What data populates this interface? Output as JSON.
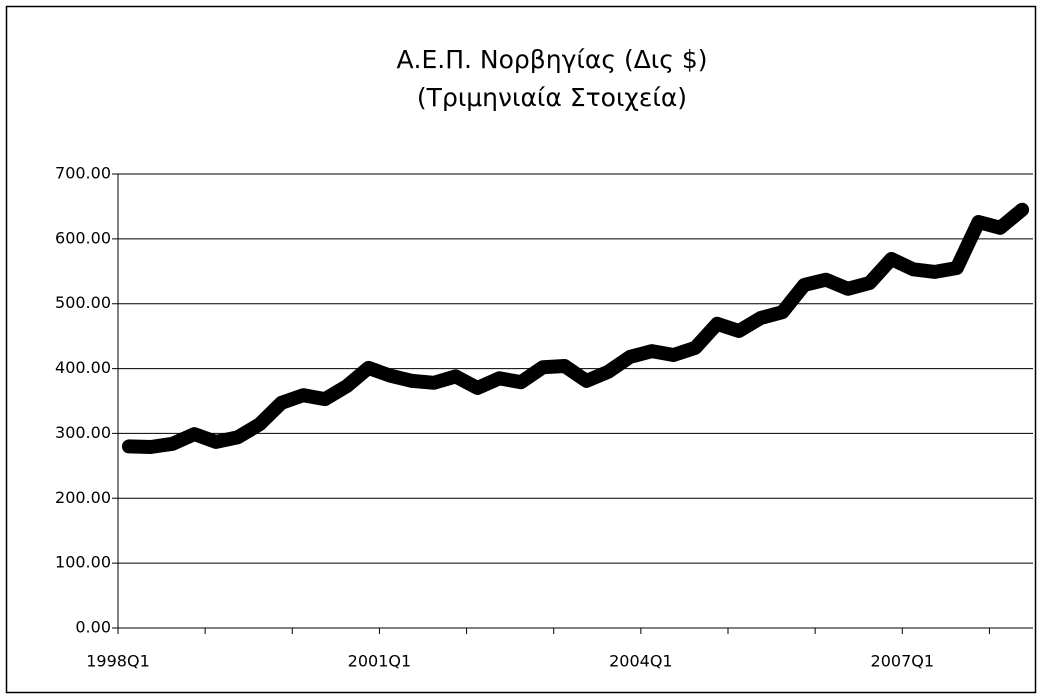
{
  "chart_data": {
    "type": "line",
    "title": "Α.Ε.Π.  Νορβηγίας (Δις $)",
    "subtitle": "(Τριμηνιαία Στοιχεία)",
    "categories": [
      "1998Q1",
      null,
      null,
      null,
      null,
      null,
      null,
      null,
      null,
      null,
      null,
      null,
      "2001Q1",
      null,
      null,
      null,
      null,
      null,
      null,
      null,
      null,
      null,
      null,
      null,
      "2004Q1",
      null,
      null,
      null,
      null,
      null,
      null,
      null,
      null,
      null,
      null,
      null,
      "2007Q1",
      null,
      null,
      null,
      null,
      null
    ],
    "series": [
      {
        "name": "Α.Ε.Π.",
        "color": "#000000",
        "values": [
          280,
          279,
          284,
          299,
          287,
          294,
          314,
          347,
          359,
          353,
          373,
          401,
          389,
          381,
          378,
          388,
          370,
          385,
          379,
          402,
          404,
          381,
          395,
          418,
          427,
          421,
          432,
          469,
          458,
          478,
          487,
          529,
          537,
          523,
          532,
          569,
          553,
          549,
          555,
          626,
          617,
          645
        ]
      }
    ],
    "ylim": [
      0,
      700
    ],
    "yticks": [
      {
        "value": 0,
        "label": "0.00"
      },
      {
        "value": 100,
        "label": "100.00"
      },
      {
        "value": 200,
        "label": "200.00"
      },
      {
        "value": 300,
        "label": "300.00"
      },
      {
        "value": 400,
        "label": "400.00"
      },
      {
        "value": 500,
        "label": "500.00"
      },
      {
        "value": 600,
        "label": "600.00"
      },
      {
        "value": 700,
        "label": "700.00"
      }
    ],
    "grid": true
  }
}
